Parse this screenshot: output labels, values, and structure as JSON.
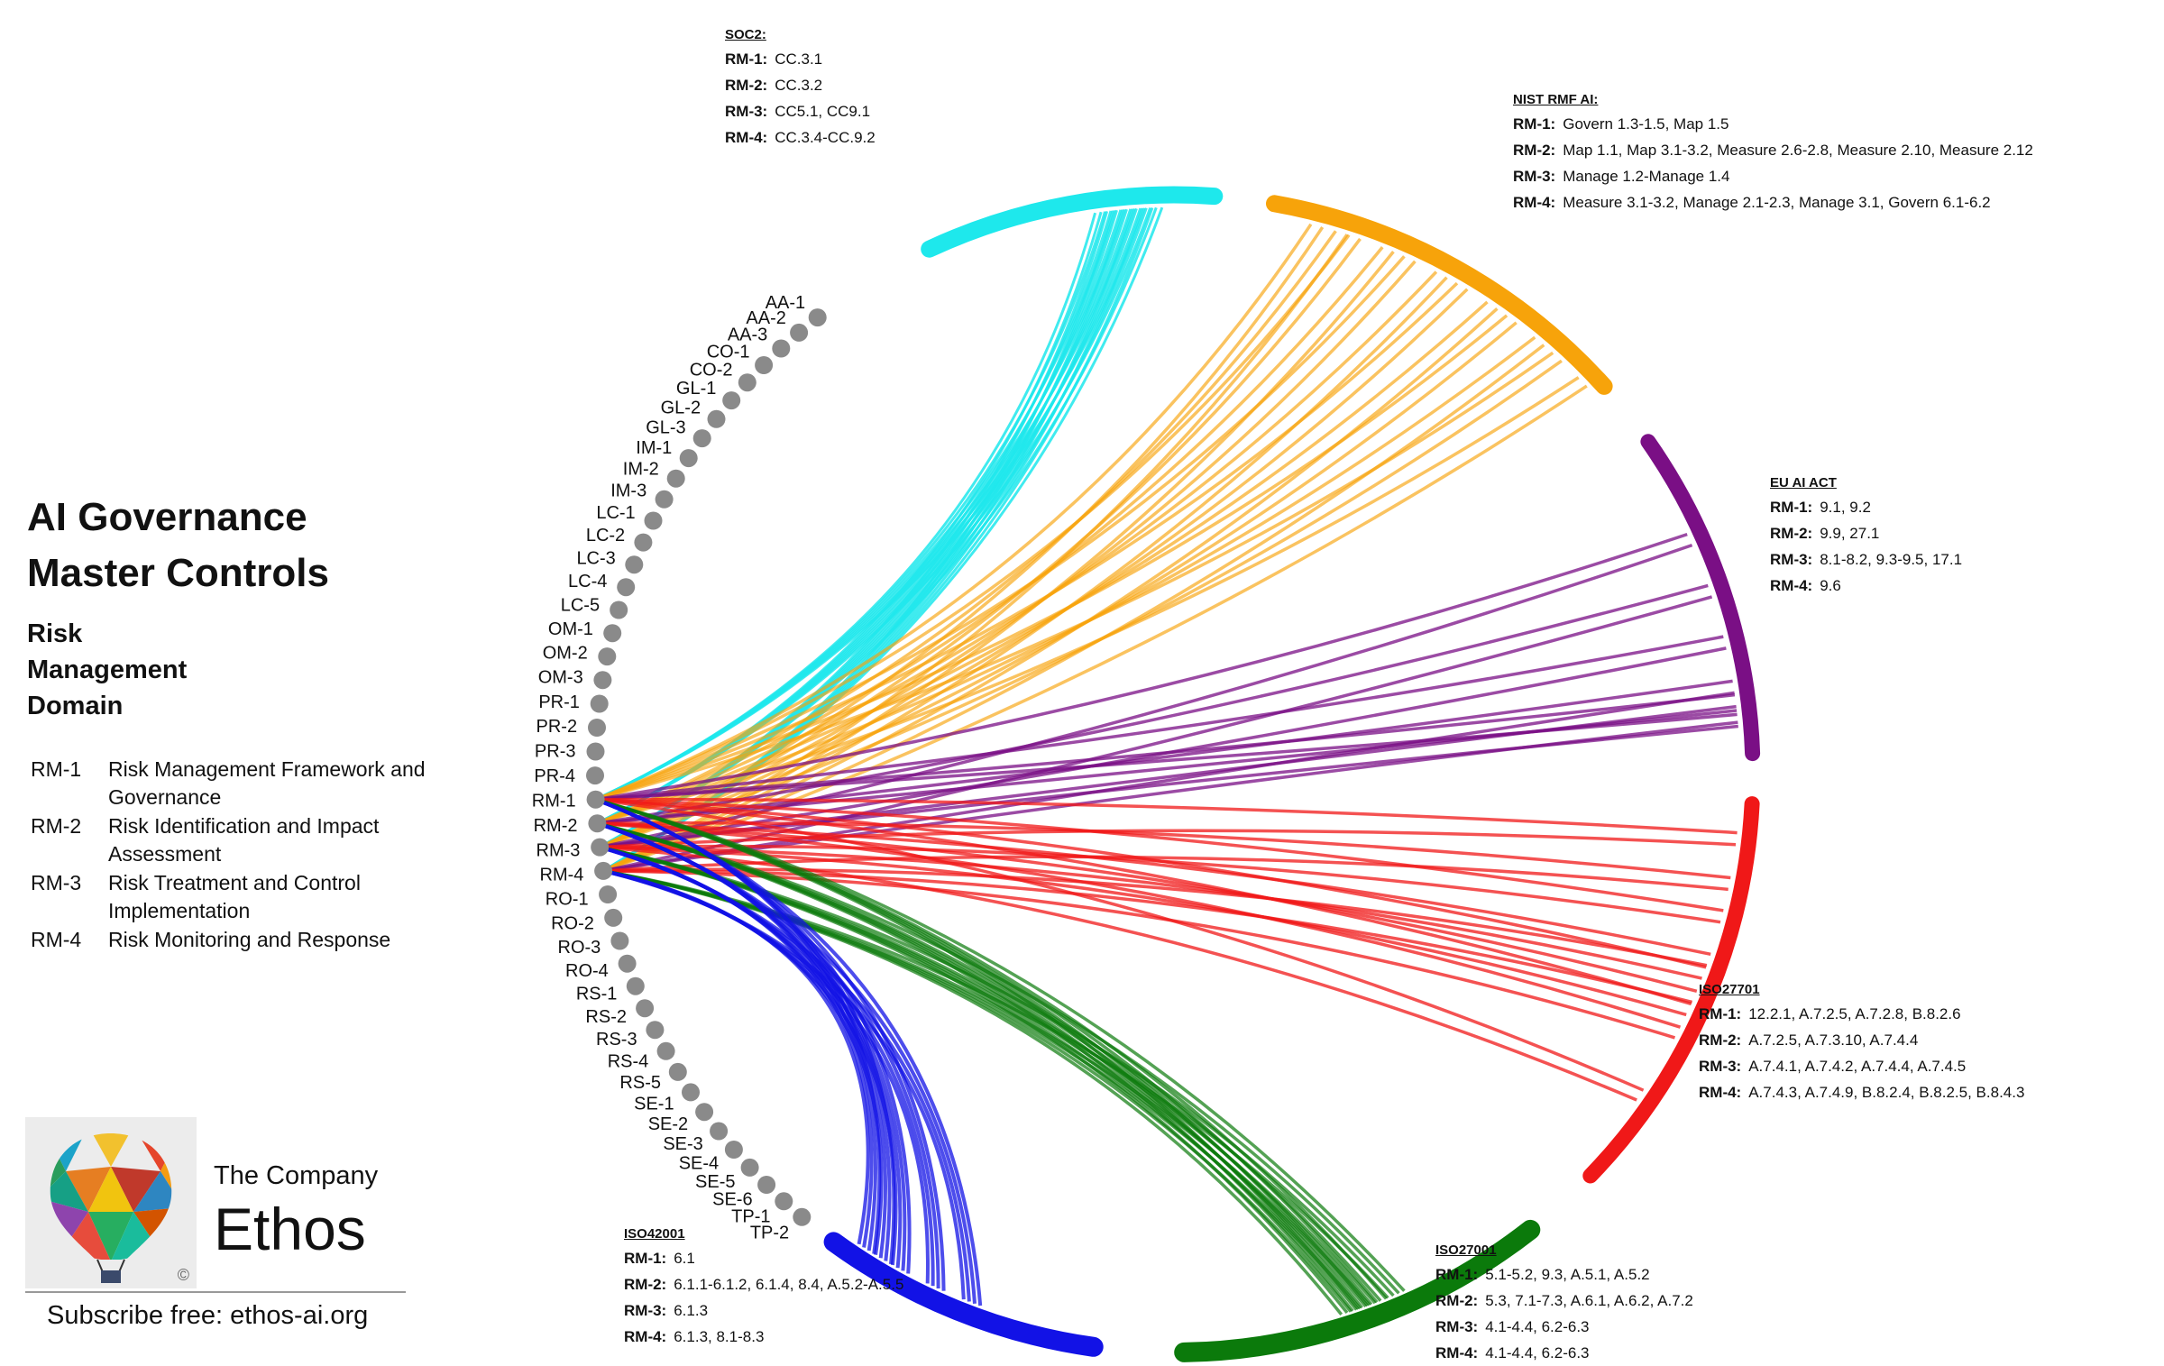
{
  "title": {
    "line1": "AI Governance",
    "line2": "Master Controls"
  },
  "domain_title": {
    "line1": "Risk",
    "line2": "Management",
    "line3": "Domain"
  },
  "legend": [
    {
      "code": "RM-1",
      "desc": "Risk Management Framework and Governance"
    },
    {
      "code": "RM-2",
      "desc": "Risk Identification and Impact Assessment"
    },
    {
      "code": "RM-3",
      "desc": "Risk Treatment and Control Implementation"
    },
    {
      "code": "RM-4",
      "desc": "Risk Monitoring and Response"
    }
  ],
  "company": {
    "subtitle": "The Company",
    "name": "Ethos",
    "copyright": "©",
    "subscribe": "Subscribe free: ethos-ai.org"
  },
  "nodes": [
    "AA-1",
    "AA-2",
    "AA-3",
    "CO-1",
    "CO-2",
    "GL-1",
    "GL-2",
    "GL-3",
    "IM-1",
    "IM-2",
    "IM-3",
    "LC-1",
    "LC-2",
    "LC-3",
    "LC-4",
    "LC-5",
    "OM-1",
    "OM-2",
    "OM-3",
    "PR-1",
    "PR-2",
    "PR-3",
    "PR-4",
    "RM-1",
    "RM-2",
    "RM-3",
    "RM-4",
    "RO-1",
    "RO-2",
    "RO-3",
    "RO-4",
    "RS-1",
    "RS-2",
    "RS-3",
    "RS-4",
    "RS-5",
    "SE-1",
    "SE-2",
    "SE-3",
    "SE-4",
    "SE-5",
    "SE-6",
    "TP-1",
    "TP-2"
  ],
  "frameworks": [
    {
      "id": "soc2",
      "header": "SOC2:",
      "color": "#1ee8ec",
      "rows": [
        {
          "code": "RM-1:",
          "value": "CC.3.1"
        },
        {
          "code": "RM-2:",
          "value": "CC.3.2"
        },
        {
          "code": "RM-3:",
          "value": "CC5.1,  CC9.1"
        },
        {
          "code": "RM-4:",
          "value": "CC.3.4-CC.9.2"
        }
      ]
    },
    {
      "id": "nist",
      "header": "NIST RMF AI:",
      "color": "#f7a30a",
      "rows": [
        {
          "code": "RM-1:",
          "value": "Govern 1.3-1.5, Map 1.5"
        },
        {
          "code": "RM-2:",
          "value": "Map 1.1,  Map 3.1-3.2, Measure 2.6-2.8, Measure 2.10, Measure 2.12"
        },
        {
          "code": "RM-3:",
          "value": "Manage 1.2-Manage 1.4"
        },
        {
          "code": "RM-4:",
          "value": "Measure 3.1-3.2, Manage 2.1-2.3, Manage 3.1, Govern 6.1-6.2"
        }
      ]
    },
    {
      "id": "euai",
      "header": "EU AI ACT",
      "color": "#7a0f85",
      "rows": [
        {
          "code": "RM-1:",
          "value": "9.1, 9.2"
        },
        {
          "code": "RM-2:",
          "value": "9.9, 27.1"
        },
        {
          "code": "RM-3:",
          "value": "8.1-8.2, 9.3-9.5, 17.1"
        },
        {
          "code": "RM-4:",
          "value": "9.6"
        }
      ]
    },
    {
      "id": "iso27701",
      "header": "ISO27701",
      "color": "#f01818",
      "rows": [
        {
          "code": "RM-1:",
          "value": "12.2.1,  A.7.2.5, A.7.2.8, B.8.2.6"
        },
        {
          "code": "RM-2:",
          "value": "A.7.2.5,  A.7.3.10,  A.7.4.4"
        },
        {
          "code": "RM-3:",
          "value": "A.7.4.1,  A.7.4.2,  A.7.4.4,  A.7.4.5"
        },
        {
          "code": "RM-4:",
          "value": "A.7.4.3,  A.7.4.9,  B.8.2.4,  B.8.2.5,  B.8.4.3"
        }
      ]
    },
    {
      "id": "iso27001",
      "header": "ISO27001",
      "color": "#0b7a0b",
      "rows": [
        {
          "code": "RM-1:",
          "value": "5.1-5.2,  9.3, A.5.1,  A.5.2"
        },
        {
          "code": "RM-2:",
          "value": "5.3,  7.1-7.3,  A.6.1,  A.6.2,  A.7.2"
        },
        {
          "code": "RM-3:",
          "value": "4.1-4.4,  6.2-6.3"
        },
        {
          "code": "RM-4:",
          "value": "4.1-4.4,  6.2-6.3"
        }
      ]
    },
    {
      "id": "iso42001",
      "header": "ISO42001",
      "color": "#1212e6",
      "rows": [
        {
          "code": "RM-1:",
          "value": "6.1"
        },
        {
          "code": "RM-2:",
          "value": "6.1.1-6.1.2, 6.1.4,  8.4,  A.5.2-A.5.5"
        },
        {
          "code": "RM-3:",
          "value": "6.1.3"
        },
        {
          "code": "RM-4:",
          "value": "6.1.3, 8.1-8.3"
        }
      ]
    }
  ]
}
